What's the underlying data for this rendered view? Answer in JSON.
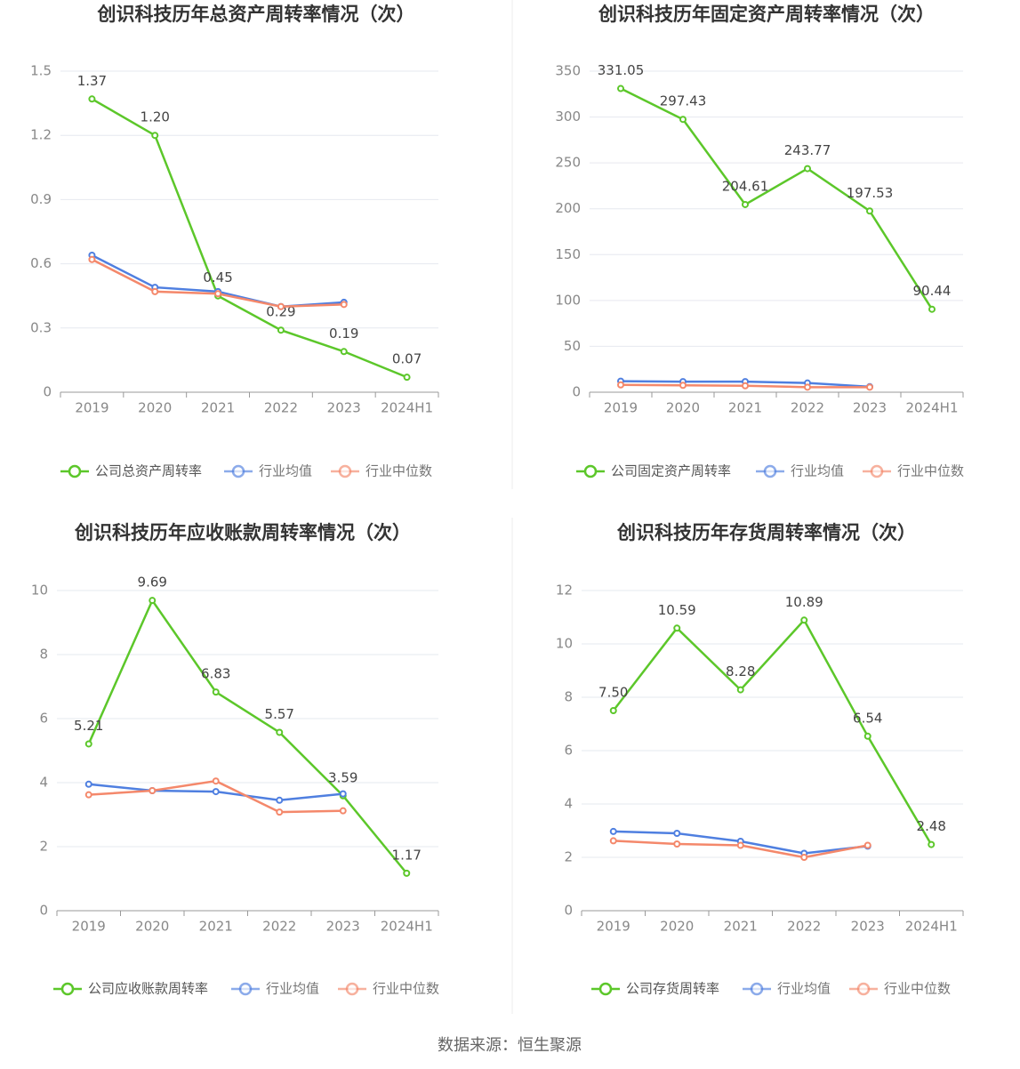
{
  "chart_data": [
    {
      "type": "line",
      "title": "创识科技历年总资产周转率情况（次）",
      "categories": [
        "2019",
        "2020",
        "2021",
        "2022",
        "2023",
        "2024H1"
      ],
      "series": [
        {
          "name": "公司总资产周转率",
          "color": "#5cc72a",
          "values": [
            1.37,
            1.2,
            0.45,
            0.29,
            0.19,
            0.07
          ],
          "value_labels": [
            "1.37",
            "1.20",
            "0.45",
            "0.29",
            "0.19",
            "0.07"
          ]
        },
        {
          "name": "行业均值",
          "color": "#4f7fe0",
          "values": [
            0.64,
            0.49,
            0.47,
            0.4,
            0.42,
            null
          ]
        },
        {
          "name": "行业中位数",
          "color": "#f4886b",
          "values": [
            0.62,
            0.47,
            0.46,
            0.4,
            0.41,
            null
          ]
        }
      ],
      "ylim": [
        0,
        1.5
      ],
      "yticks": [
        0,
        0.3,
        0.6,
        0.9,
        1.2,
        1.5
      ],
      "grid": true
    },
    {
      "type": "line",
      "title": "创识科技历年固定资产周转率情况（次）",
      "categories": [
        "2019",
        "2020",
        "2021",
        "2022",
        "2023",
        "2024H1"
      ],
      "series": [
        {
          "name": "公司固定资产周转率",
          "color": "#5cc72a",
          "values": [
            331.05,
            297.43,
            204.61,
            243.77,
            197.53,
            90.44
          ]
        },
        {
          "name": "行业均值",
          "color": "#4f7fe0",
          "values": [
            12,
            11.5,
            11.5,
            10,
            6,
            null
          ]
        },
        {
          "name": "行业中位数",
          "color": "#f4886b",
          "values": [
            8,
            7.5,
            7,
            5.5,
            5.5,
            null
          ]
        }
      ],
      "ylim": [
        0,
        350
      ],
      "yticks": [
        0,
        50,
        100,
        150,
        200,
        250,
        300,
        350
      ],
      "grid": true
    },
    {
      "type": "line",
      "title": "创识科技历年应收账款周转率情况（次）",
      "categories": [
        "2019",
        "2020",
        "2021",
        "2022",
        "2023",
        "2024H1"
      ],
      "series": [
        {
          "name": "公司应收账款周转率",
          "color": "#5cc72a",
          "values": [
            5.21,
            9.69,
            6.83,
            5.57,
            3.59,
            1.17
          ]
        },
        {
          "name": "行业均值",
          "color": "#4f7fe0",
          "values": [
            3.95,
            3.75,
            3.72,
            3.45,
            3.65,
            null
          ]
        },
        {
          "name": "行业中位数",
          "color": "#f4886b",
          "values": [
            3.62,
            3.75,
            4.05,
            3.08,
            3.12,
            null
          ]
        }
      ],
      "ylim": [
        0,
        10
      ],
      "yticks": [
        0,
        2,
        4,
        6,
        8,
        10
      ],
      "grid": true
    },
    {
      "type": "line",
      "title": "创识科技历年存货周转率情况（次）",
      "categories": [
        "2019",
        "2020",
        "2021",
        "2022",
        "2023",
        "2024H1"
      ],
      "series": [
        {
          "name": "公司存货周转率",
          "color": "#5cc72a",
          "values": [
            7.5,
            10.59,
            8.28,
            10.89,
            6.54,
            2.48
          ],
          "value_labels": [
            "7.50",
            "10.59",
            "8.28",
            "10.89",
            "6.54",
            "2.48"
          ]
        },
        {
          "name": "行业均值",
          "color": "#4f7fe0",
          "values": [
            2.97,
            2.9,
            2.6,
            2.15,
            2.42,
            null
          ]
        },
        {
          "name": "行业中位数",
          "color": "#f4886b",
          "values": [
            2.62,
            2.5,
            2.45,
            2.0,
            2.45,
            null
          ]
        }
      ],
      "ylim": [
        0,
        12
      ],
      "yticks": [
        0,
        2,
        4,
        6,
        8,
        10,
        12
      ],
      "grid": true
    }
  ],
  "source": "数据来源：恒生聚源"
}
